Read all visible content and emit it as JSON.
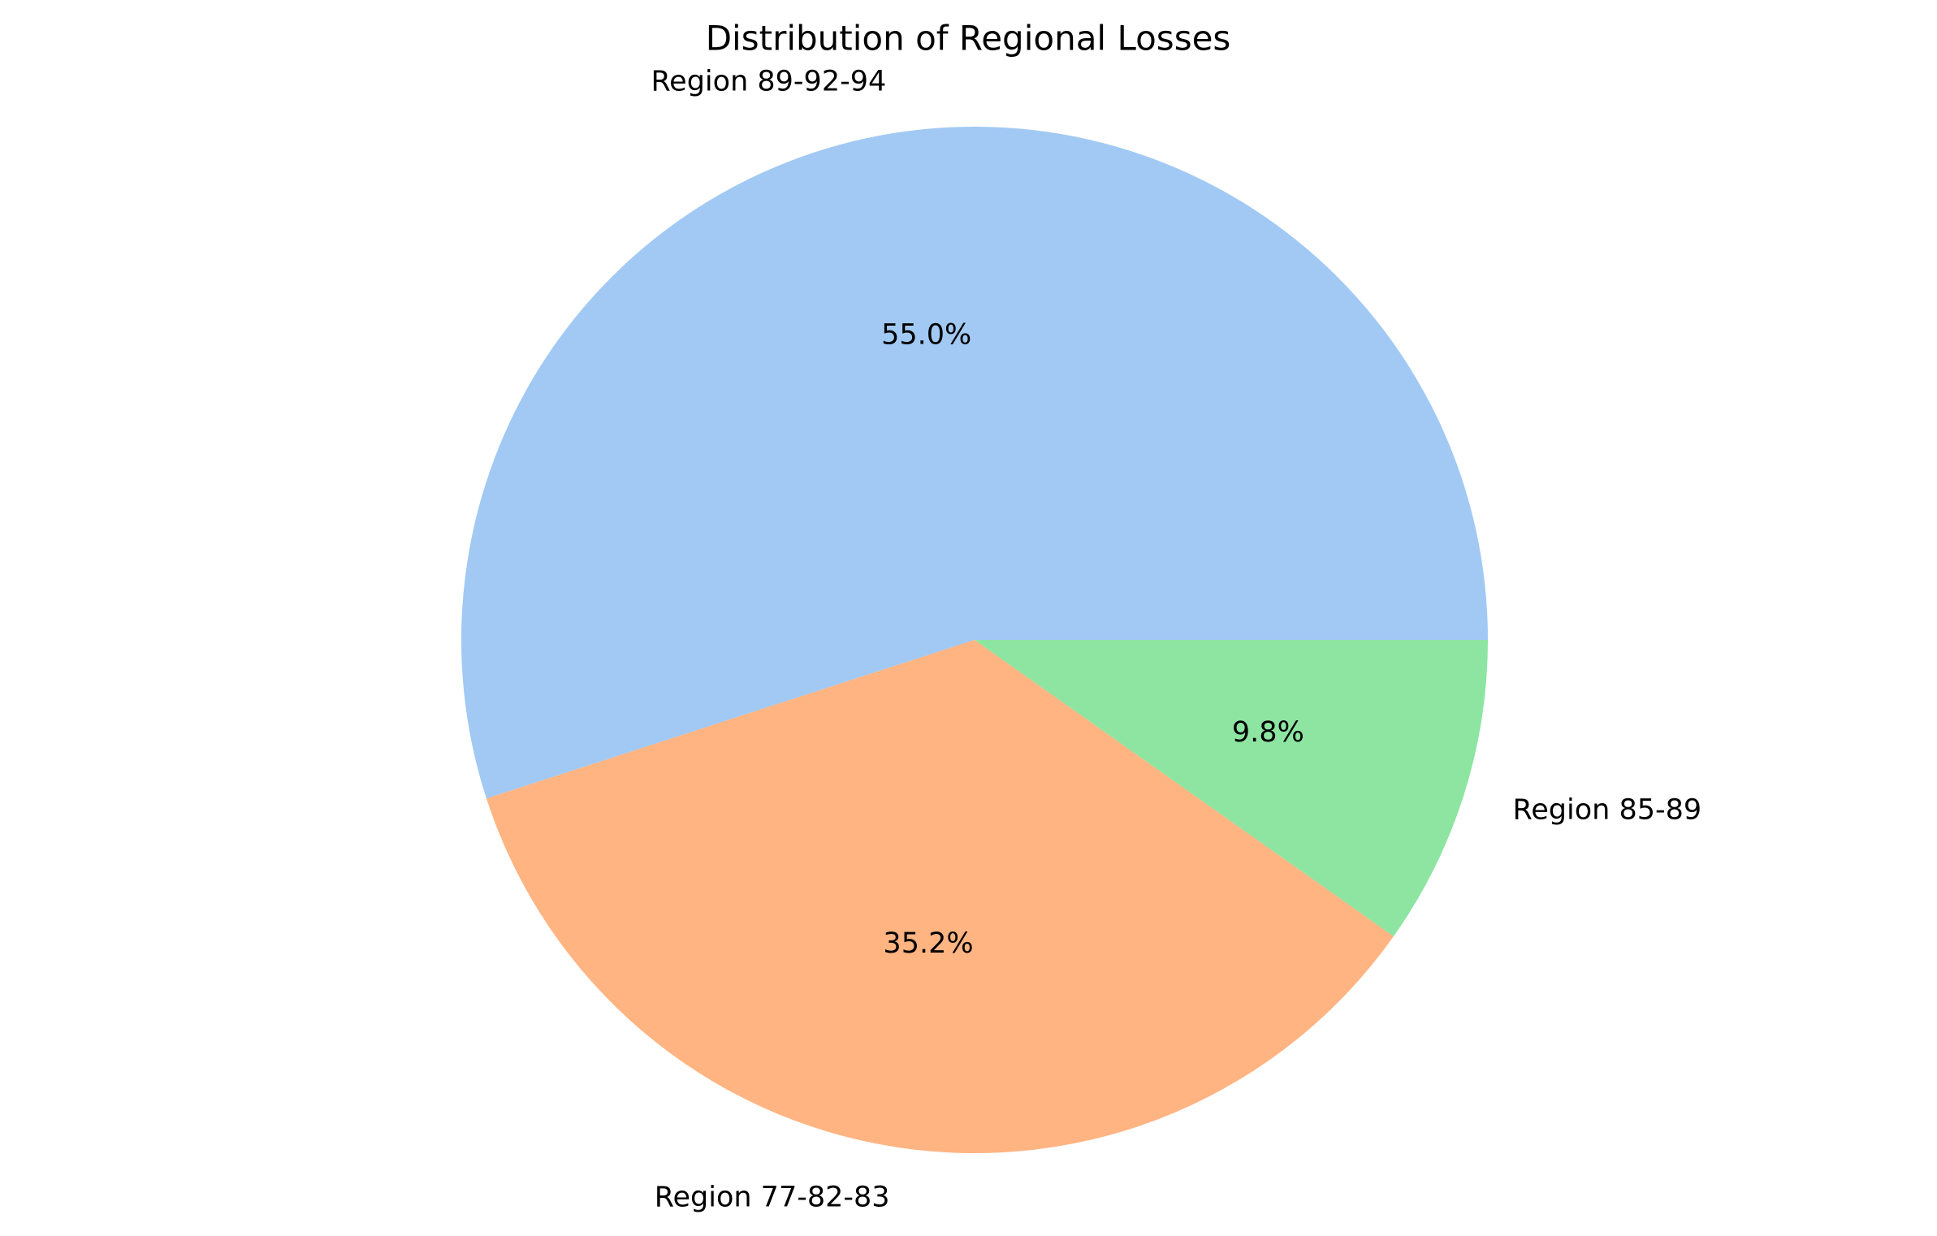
{
  "chart_data": {
    "type": "pie",
    "title": "Distribution of Regional Losses",
    "start_angle_deg": 0,
    "direction": "counterclockwise",
    "slices": [
      {
        "label": "Region 89-92-94",
        "value": 55.0,
        "pct_label": "55.0%",
        "color": "#a1c9f4"
      },
      {
        "label": "Region 77-82-83",
        "value": 35.2,
        "pct_label": "35.2%",
        "color": "#ffb482"
      },
      {
        "label": "Region 85-89",
        "value": 9.8,
        "pct_label": "9.8%",
        "color": "#8de5a1"
      }
    ]
  }
}
